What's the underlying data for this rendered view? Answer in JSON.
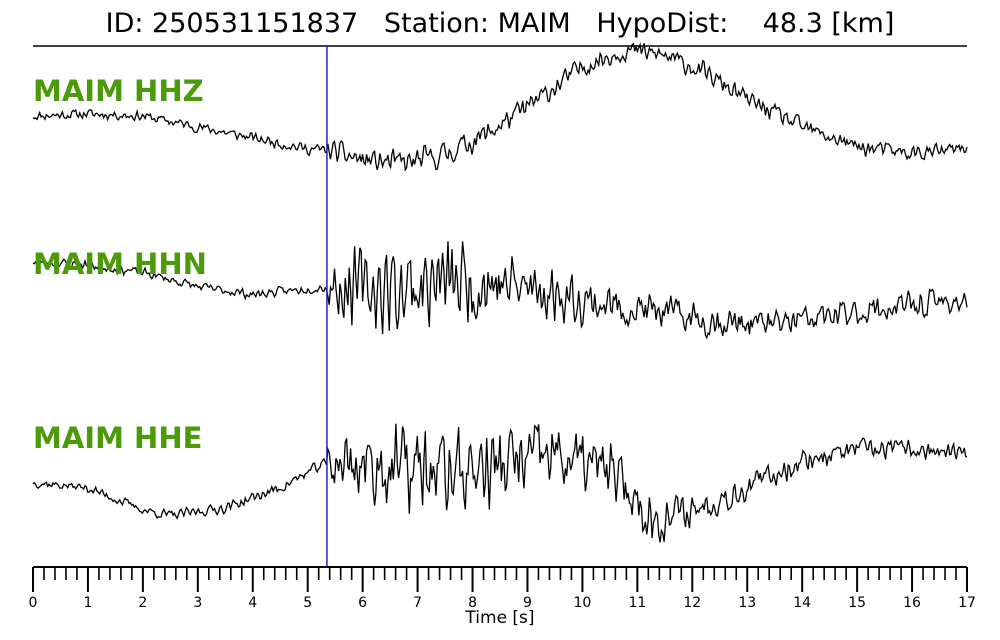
{
  "header": {
    "title": "ID: 250531151837   Station: MAIM   HypoDist:    48.3 [km]"
  },
  "chart_data": {
    "type": "line",
    "xlabel": "Time [s]",
    "xlim": [
      0,
      17
    ],
    "x_ticks": [
      "0",
      "1",
      "2",
      "3",
      "4",
      "5",
      "6",
      "7",
      "8",
      "9",
      "10",
      "11",
      "12",
      "13",
      "14",
      "15",
      "16",
      "17"
    ],
    "minor_tick_step": 0.2,
    "pick_time": 5.35,
    "colors": {
      "trace": "#000000",
      "pick": "#1f1fd0",
      "channel_label": "#4a9a0a"
    },
    "series": [
      {
        "name": "MAIM HHZ",
        "envelope": [
          [
            0,
            0.4
          ],
          [
            1,
            0.42
          ],
          [
            2,
            0.4
          ],
          [
            3,
            0.3
          ],
          [
            4,
            0.2
          ],
          [
            5,
            0.1
          ],
          [
            5.4,
            0.09
          ],
          [
            6,
            0.0
          ],
          [
            6.8,
            -0.03
          ],
          [
            7.5,
            0.05
          ],
          [
            8.3,
            0.25
          ],
          [
            9.2,
            0.55
          ],
          [
            10,
            0.85
          ],
          [
            10.8,
            1.0
          ],
          [
            11.5,
            0.95
          ],
          [
            12.2,
            0.8
          ],
          [
            13,
            0.55
          ],
          [
            14,
            0.3
          ],
          [
            15,
            0.12
          ],
          [
            16,
            0.06
          ],
          [
            17,
            0.1
          ]
        ],
        "noise": [
          [
            0,
            0.05
          ],
          [
            5.3,
            0.06
          ],
          [
            5.4,
            0.12
          ],
          [
            7.5,
            0.14
          ],
          [
            9,
            0.12
          ],
          [
            17,
            0.08
          ]
        ],
        "seed": 11
      },
      {
        "name": "MAIM HHN",
        "envelope": [
          [
            0,
            0.35
          ],
          [
            1,
            0.32
          ],
          [
            2,
            0.25
          ],
          [
            3,
            0.12
          ],
          [
            4,
            0.05
          ],
          [
            5,
            0.1
          ],
          [
            5.4,
            0.12
          ],
          [
            6.5,
            0.1
          ],
          [
            7.5,
            0.16
          ],
          [
            8.5,
            0.15
          ],
          [
            9.5,
            0.05
          ],
          [
            10.5,
            -0.05
          ],
          [
            11.5,
            -0.12
          ],
          [
            12.5,
            -0.2
          ],
          [
            13.5,
            -0.22
          ],
          [
            14.5,
            -0.15
          ],
          [
            15.5,
            -0.08
          ],
          [
            16.5,
            -0.02
          ],
          [
            17,
            0.0
          ]
        ],
        "noise": [
          [
            0,
            0.05
          ],
          [
            5.3,
            0.05
          ],
          [
            5.4,
            0.35
          ],
          [
            6.5,
            0.5
          ],
          [
            8,
            0.45
          ],
          [
            9.5,
            0.28
          ],
          [
            11,
            0.2
          ],
          [
            13,
            0.17
          ],
          [
            15,
            0.15
          ],
          [
            17,
            0.15
          ]
        ],
        "seed": 23
      },
      {
        "name": "MAIM HHE",
        "envelope": [
          [
            0,
            0.05
          ],
          [
            1,
            0.0
          ],
          [
            2,
            -0.2
          ],
          [
            2.5,
            -0.25
          ],
          [
            3.5,
            -0.18
          ],
          [
            4.5,
            0.0
          ],
          [
            5.4,
            0.25
          ],
          [
            6.5,
            0.18
          ],
          [
            7.5,
            0.15
          ],
          [
            8.5,
            0.2
          ],
          [
            9.5,
            0.3
          ],
          [
            10.5,
            0.15
          ],
          [
            11.3,
            -0.3
          ],
          [
            12,
            -0.2
          ],
          [
            13,
            0.0
          ],
          [
            14,
            0.25
          ],
          [
            15,
            0.35
          ],
          [
            16,
            0.35
          ],
          [
            17,
            0.3
          ]
        ],
        "noise": [
          [
            0,
            0.05
          ],
          [
            5.3,
            0.06
          ],
          [
            5.4,
            0.35
          ],
          [
            7,
            0.5
          ],
          [
            9.5,
            0.4
          ],
          [
            11,
            0.3
          ],
          [
            12,
            0.18
          ],
          [
            14,
            0.12
          ],
          [
            17,
            0.1
          ]
        ],
        "seed": 37
      }
    ]
  }
}
